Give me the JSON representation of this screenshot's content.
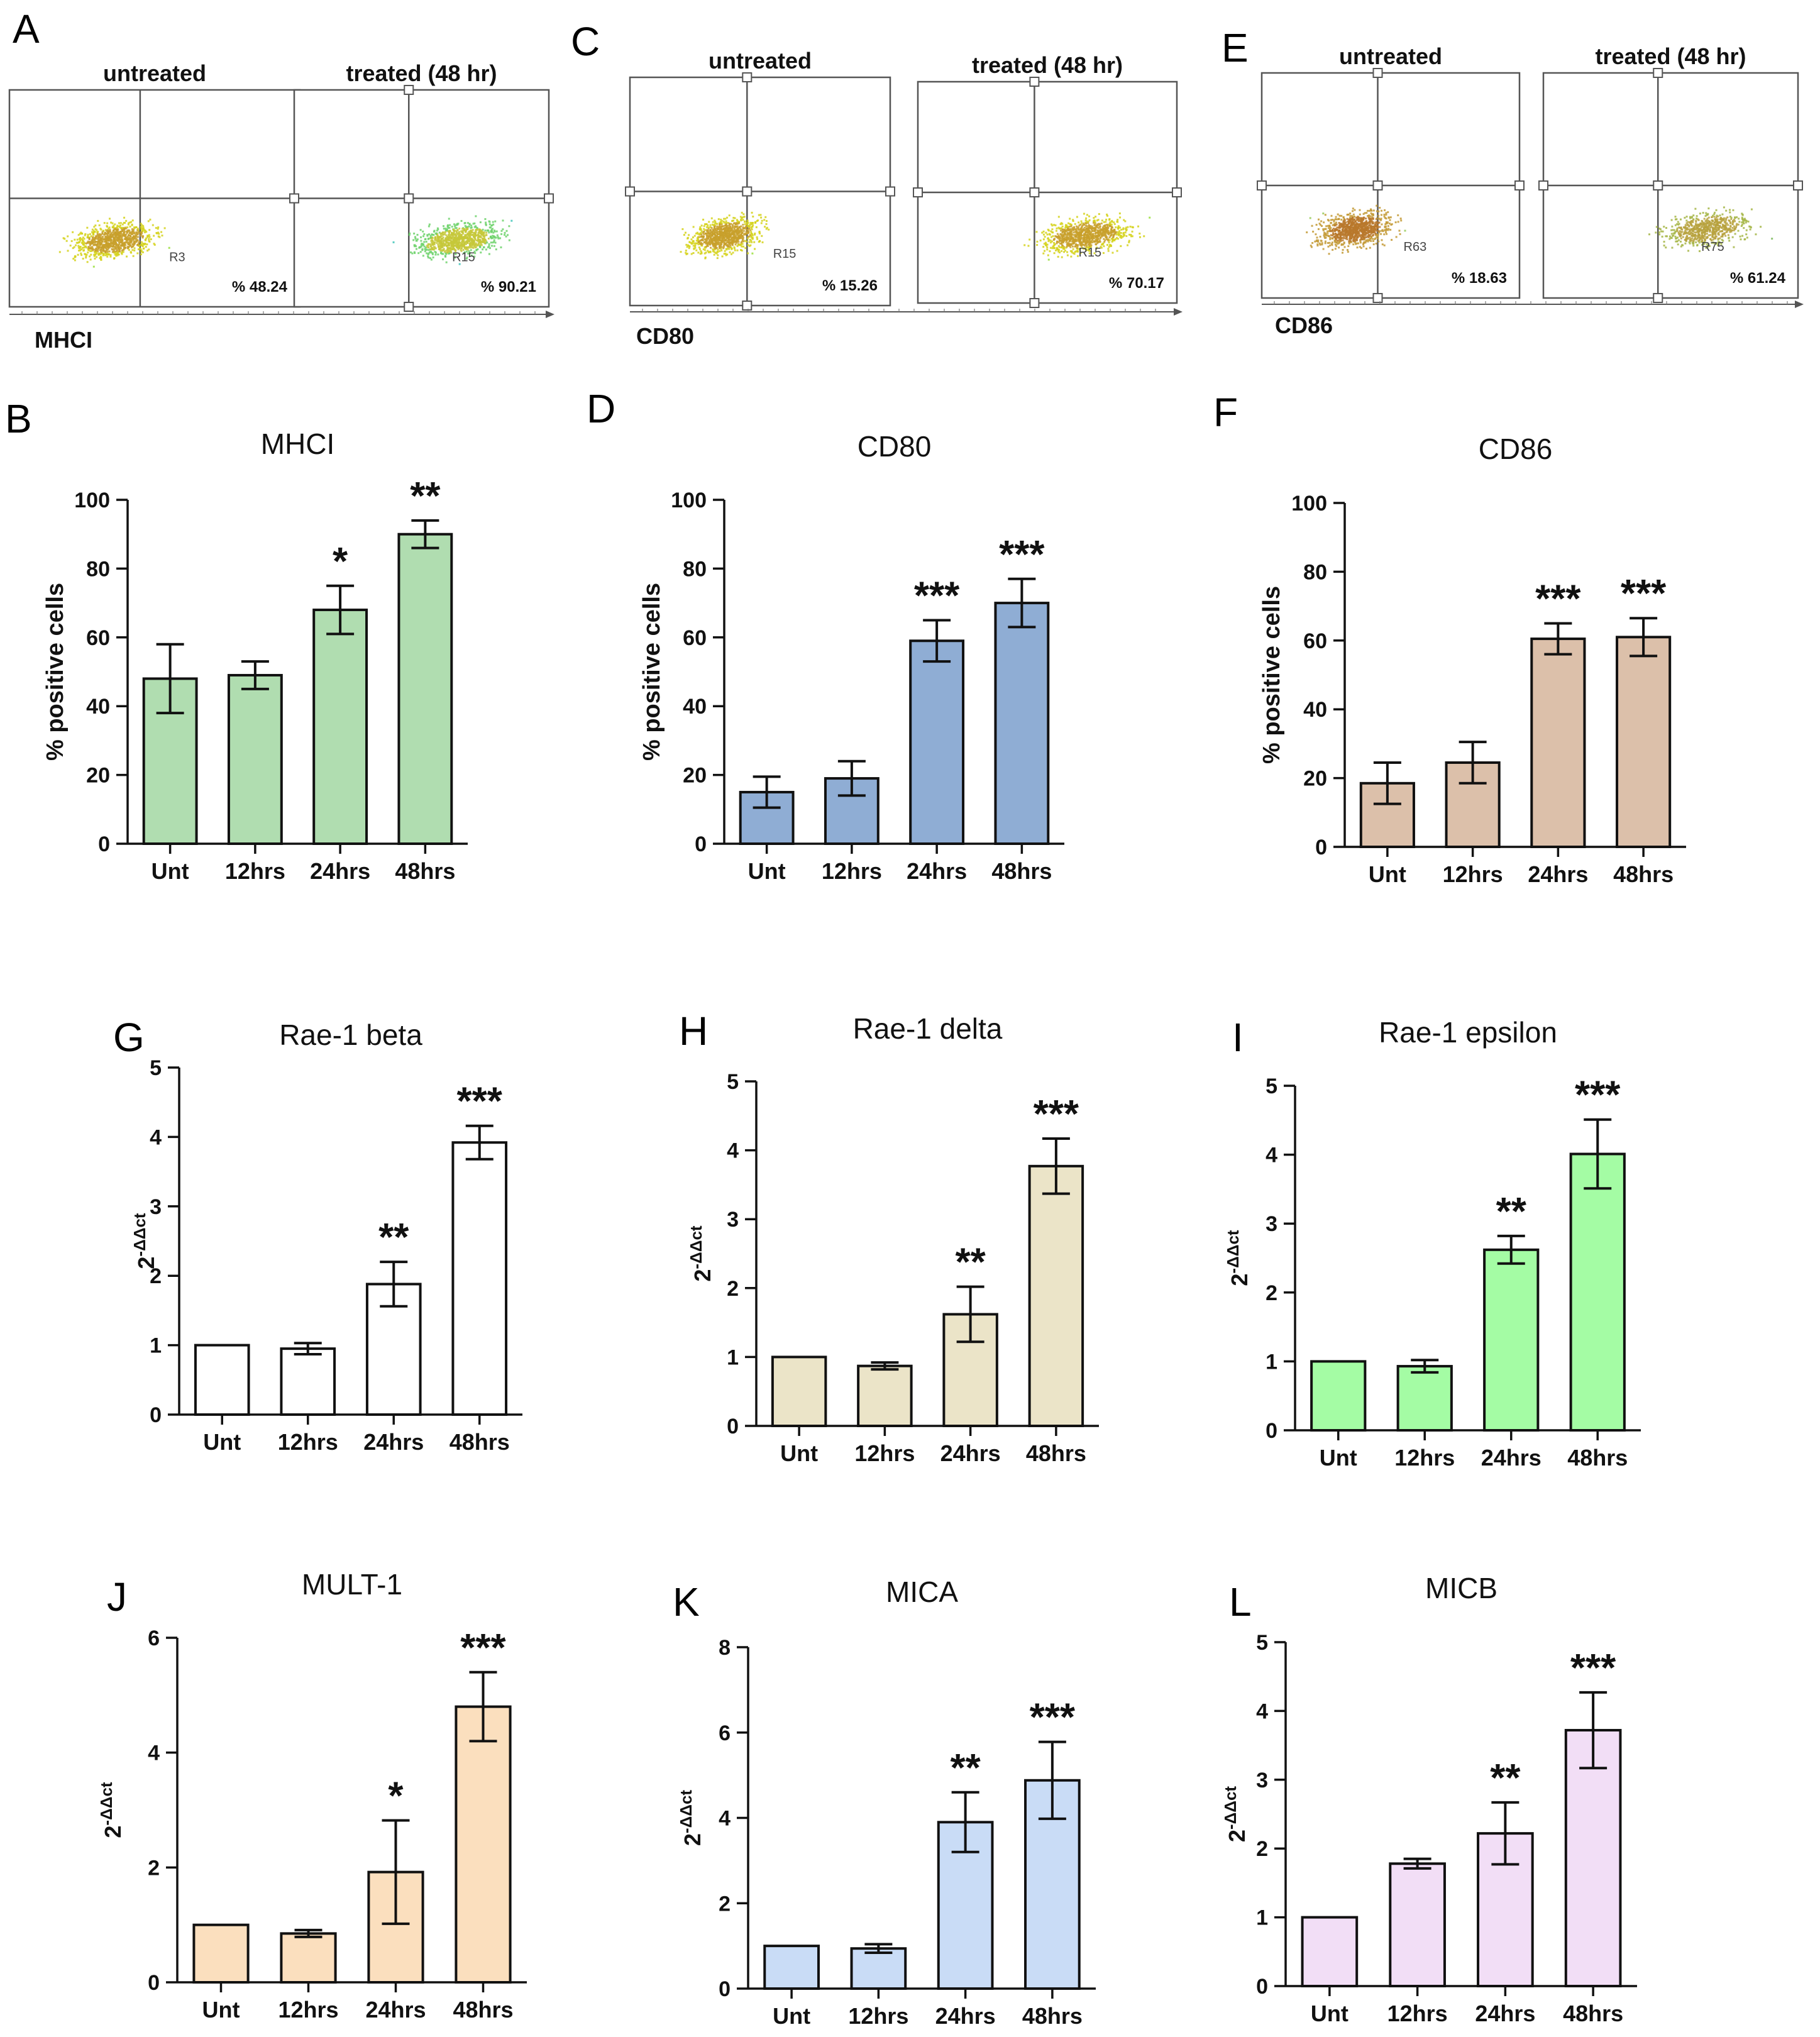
{
  "figure": {
    "flow_panels": [
      {
        "letter": "A",
        "marker": "MHCI",
        "plots": [
          {
            "title": "untreated",
            "region": "R3",
            "percent": "% 48.24",
            "shift": "low",
            "palette": "green-yellow"
          },
          {
            "title": "treated (48 hr)",
            "region": "R15",
            "percent": "% 90.21",
            "shift": "high",
            "palette": "blue-green"
          }
        ]
      },
      {
        "letter": "C",
        "marker": "CD80",
        "plots": [
          {
            "title": "untreated",
            "region": "R15",
            "percent": "% 15.26",
            "shift": "low",
            "palette": "green-yellow"
          },
          {
            "title": "treated (48 hr)",
            "region": "R15",
            "percent": "% 70.17",
            "shift": "high",
            "palette": "green-yellow"
          }
        ]
      },
      {
        "letter": "E",
        "marker": "CD86",
        "plots": [
          {
            "title": "untreated",
            "region": "R63",
            "percent": "% 18.63",
            "shift": "low",
            "palette": "orange-green"
          },
          {
            "title": "treated (48 hr)",
            "region": "R75",
            "percent": "% 61.24",
            "shift": "high",
            "palette": "sparse-green"
          }
        ]
      }
    ]
  },
  "chart_data": [
    {
      "letter": "B",
      "type": "bar",
      "title": "MHCI",
      "ylabel": "% positive cells",
      "ylim": [
        0,
        100
      ],
      "yticks": [
        "0",
        "20",
        "40",
        "60",
        "80",
        "100"
      ],
      "categories": [
        "Unt",
        "12hrs",
        "24hrs",
        "48hrs"
      ],
      "values": [
        48,
        49,
        68,
        90
      ],
      "errors": [
        10,
        4,
        7,
        4
      ],
      "significance": [
        "",
        "",
        "*",
        "**"
      ],
      "color": "#b0ddb0"
    },
    {
      "letter": "D",
      "type": "bar",
      "title": "CD80",
      "ylabel": "% positive cells",
      "ylim": [
        0,
        100
      ],
      "yticks": [
        "0",
        "20",
        "40",
        "60",
        "80",
        "100"
      ],
      "categories": [
        "Unt",
        "12hrs",
        "24hrs",
        "48hrs"
      ],
      "values": [
        15,
        19,
        59,
        70
      ],
      "errors": [
        4.5,
        5,
        6,
        7
      ],
      "significance": [
        "",
        "",
        "***",
        "***"
      ],
      "color": "#8fadd4"
    },
    {
      "letter": "F",
      "type": "bar",
      "title": "CD86",
      "ylabel": "% positive cells",
      "ylim": [
        0,
        100
      ],
      "yticks": [
        "0",
        "20",
        "40",
        "60",
        "80",
        "100"
      ],
      "categories": [
        "Unt",
        "12hrs",
        "24hrs",
        "48hrs"
      ],
      "values": [
        18.5,
        24.5,
        60.5,
        61
      ],
      "errors": [
        6,
        6,
        4.5,
        5.5
      ],
      "significance": [
        "",
        "",
        "***",
        "***"
      ],
      "color": "#dcc0aa"
    },
    {
      "letter": "G",
      "type": "bar",
      "title": "Rae-1 beta",
      "ylabel": "2-ΔΔct",
      "ylim": [
        0,
        5
      ],
      "yticks": [
        "0",
        "1",
        "2",
        "3",
        "4",
        "5"
      ],
      "categories": [
        "Unt",
        "12hrs",
        "24hrs",
        "48hrs"
      ],
      "values": [
        1.0,
        0.95,
        1.88,
        3.92
      ],
      "errors": [
        0,
        0.08,
        0.32,
        0.24
      ],
      "significance": [
        "",
        "",
        "**",
        "***"
      ],
      "color": "#ffffff"
    },
    {
      "letter": "H",
      "type": "bar",
      "title": "Rae-1 delta",
      "ylabel": "2-ΔΔct",
      "ylim": [
        0,
        5
      ],
      "yticks": [
        "0",
        "1",
        "2",
        "3",
        "4",
        "5"
      ],
      "categories": [
        "Unt",
        "12hrs",
        "24hrs",
        "48hrs"
      ],
      "values": [
        1.0,
        0.87,
        1.62,
        3.77
      ],
      "errors": [
        0,
        0.05,
        0.4,
        0.4
      ],
      "significance": [
        "",
        "",
        "**",
        "***"
      ],
      "color": "#ebe4c8"
    },
    {
      "letter": "I",
      "type": "bar",
      "title": "Rae-1 epsilon",
      "ylabel": "2-ΔΔct",
      "ylim": [
        0,
        5
      ],
      "yticks": [
        "0",
        "1",
        "2",
        "3",
        "4",
        "5"
      ],
      "categories": [
        "Unt",
        "12hrs",
        "24hrs",
        "48hrs"
      ],
      "values": [
        1.0,
        0.93,
        2.62,
        4.01
      ],
      "errors": [
        0,
        0.09,
        0.2,
        0.5
      ],
      "significance": [
        "",
        "",
        "**",
        "***"
      ],
      "color": "#a4fca4"
    },
    {
      "letter": "J",
      "type": "bar",
      "title": "MULT-1",
      "ylabel": "2-ΔΔct",
      "ylim": [
        0,
        6
      ],
      "yticks": [
        "0",
        "2",
        "4",
        "6"
      ],
      "categories": [
        "Unt",
        "12hrs",
        "24hrs",
        "48hrs"
      ],
      "values": [
        1.0,
        0.85,
        1.92,
        4.8
      ],
      "errors": [
        0,
        0.06,
        0.9,
        0.6
      ],
      "significance": [
        "",
        "",
        "*",
        "***"
      ],
      "color": "#fbdfbe"
    },
    {
      "letter": "K",
      "type": "bar",
      "title": "MICA",
      "ylabel": "2-ΔΔct",
      "ylim": [
        0,
        8
      ],
      "yticks": [
        "0",
        "2",
        "4",
        "6",
        "8"
      ],
      "categories": [
        "Unt",
        "12hrs",
        "24hrs",
        "48hrs"
      ],
      "values": [
        1.0,
        0.94,
        3.9,
        4.88
      ],
      "errors": [
        0,
        0.1,
        0.7,
        0.9
      ],
      "significance": [
        "",
        "",
        "**",
        "***"
      ],
      "color": "#c9dcf6"
    },
    {
      "letter": "L",
      "type": "bar",
      "title": "MICB",
      "ylabel": "2-ΔΔct",
      "ylim": [
        0,
        5
      ],
      "yticks": [
        "0",
        "1",
        "2",
        "3",
        "4",
        "5"
      ],
      "categories": [
        "Unt",
        "12hrs",
        "24hrs",
        "48hrs"
      ],
      "values": [
        1.0,
        1.78,
        2.22,
        3.72
      ],
      "errors": [
        0,
        0.07,
        0.45,
        0.55
      ],
      "significance": [
        "",
        "",
        "**",
        "***"
      ],
      "color": "#f2def6"
    }
  ]
}
